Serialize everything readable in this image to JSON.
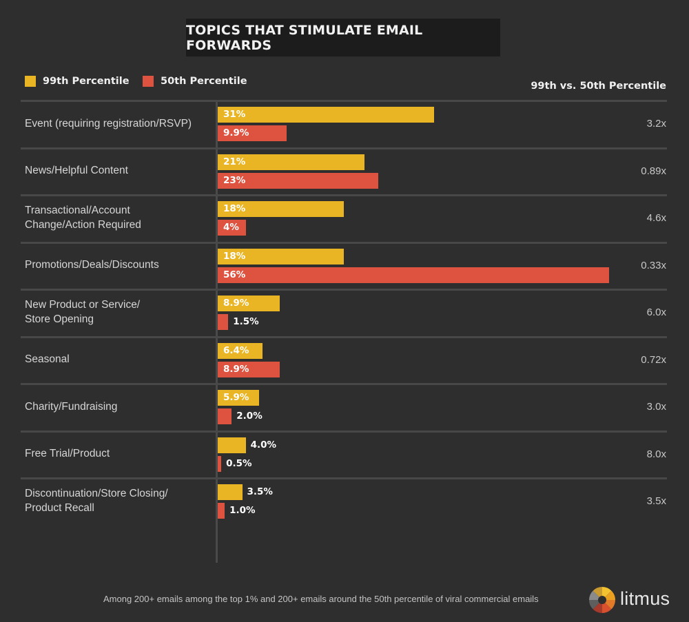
{
  "header": {
    "title": "TOPICS THAT STIMULATE EMAIL FORWARDS"
  },
  "legend": {
    "p99_label": "99th Percentile",
    "p50_label": "50th Percentile",
    "ratio_header": "99th vs. 50th Percentile"
  },
  "colors": {
    "p99": "#e9b524",
    "p50": "#dd5340",
    "background": "#2e2e2e"
  },
  "chart_data": {
    "type": "bar",
    "orientation": "horizontal",
    "title": "TOPICS THAT STIMULATE EMAIL FORWARDS",
    "xlim": [
      0,
      56
    ],
    "categories": [
      "Event (requiring registration/RSVP)",
      "News/Helpful Content",
      "Transactional/Account\nChange/Action Required",
      "Promotions/Deals/Discounts",
      "New Product or Service/\nStore Opening",
      "Seasonal",
      "Charity/Fundraising",
      "Free Trial/Product",
      "Discontinuation/Store Closing/\nProduct Recall"
    ],
    "series": [
      {
        "name": "99th Percentile",
        "values": [
          31,
          21,
          18,
          18,
          8.9,
          6.4,
          5.9,
          4.0,
          3.5
        ],
        "labels": [
          "31%",
          "21%",
          "18%",
          "18%",
          "8.9%",
          "6.4%",
          "5.9%",
          "4.0%",
          "3.5%"
        ]
      },
      {
        "name": "50th Percentile",
        "values": [
          9.9,
          23,
          4,
          56,
          1.5,
          8.9,
          2.0,
          0.5,
          1.0
        ],
        "labels": [
          "9.9%",
          "23%",
          "4%",
          "56%",
          "1.5%",
          "8.9%",
          "2.0%",
          "0.5%",
          "1.0%"
        ]
      }
    ],
    "ratios": [
      "3.2x",
      "0.89x",
      "4.6x",
      "0.33x",
      "6.0x",
      "0.72x",
      "3.0x",
      "8.0x",
      "3.5x"
    ]
  },
  "footer": {
    "note": "Among 200+ emails among the top 1% and 200+ emails around the 50th percentile of viral commercial emails",
    "brand": "litmus",
    "logo_icon": "litmus-logo-icon"
  }
}
